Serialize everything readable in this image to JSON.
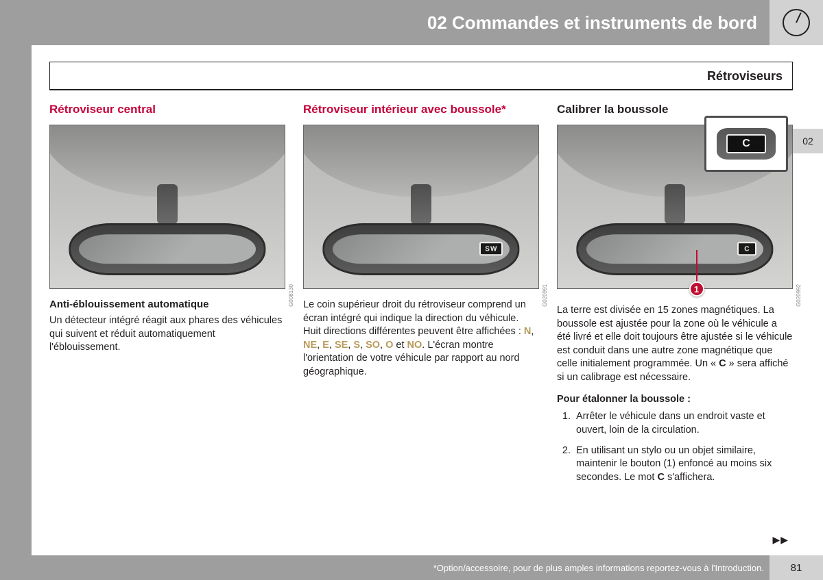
{
  "header": {
    "chapter_title": "02 Commandes et instruments de bord"
  },
  "page": {
    "section_title": "Rétroviseurs",
    "page_number": "81",
    "tab_label": "02",
    "continue_marker": "▶▶"
  },
  "col1": {
    "heading": "Rétroviseur central",
    "figure_ref": "G008130",
    "sub_heading": "Anti-éblouissement automatique",
    "body": "Un détecteur intégré réagit aux phares des véhicules qui suivent et réduit automatiquement l'éblouissement."
  },
  "col2": {
    "heading": "Rétroviseur intérieur avec boussole*",
    "figure_ref": "G020991",
    "display_text": "SW",
    "body_intro": "Le coin supérieur droit du rétroviseur comprend un écran intégré qui indique la direction du véhicule. Huit directions différentes peuvent être affichées : ",
    "dirs": [
      "N",
      "NE",
      "E",
      "SE",
      "S",
      "SO",
      "O"
    ],
    "dir_sep": ", ",
    "dir_and": " et ",
    "dir_last": "NO",
    "body_tail": ". L'écran montre l'orientation de votre véhicule par rapport au nord géographique."
  },
  "col3": {
    "heading": "Calibrer la boussole",
    "figure_ref": "G020992",
    "display_text": "C",
    "indicator_num": "1",
    "body_p1_a": "La terre est divisée en 15 zones magnétiques. La boussole est ajustée pour la zone où le véhicule a été livré et elle doit toujours être ajustée si le véhicule est conduit dans une autre zone magnétique que celle initialement programmée. Un « ",
    "body_p1_b": "C",
    "body_p1_c": " » sera affiché si un calibrage est nécessaire.",
    "sub_heading": "Pour étalonner la boussole :",
    "steps": [
      "Arrêter le véhicule dans un endroit vaste et ouvert, loin de la circulation.",
      "En utilisant un stylo ou un objet similaire, maintenir le bouton (1) enfoncé au moins six secondes. Le mot __B__C__/B__ s'affichera."
    ]
  },
  "footer": {
    "note_prefix": "* ",
    "note": "Option/accessoire, pour de plus amples informations reportez-vous à l'Introduction."
  },
  "colors": {
    "accent_red": "#c4033a",
    "sidebar_grey": "#9e9e9e",
    "light_grey": "#d2d2d2",
    "dir_gold": "#b89a5a"
  }
}
